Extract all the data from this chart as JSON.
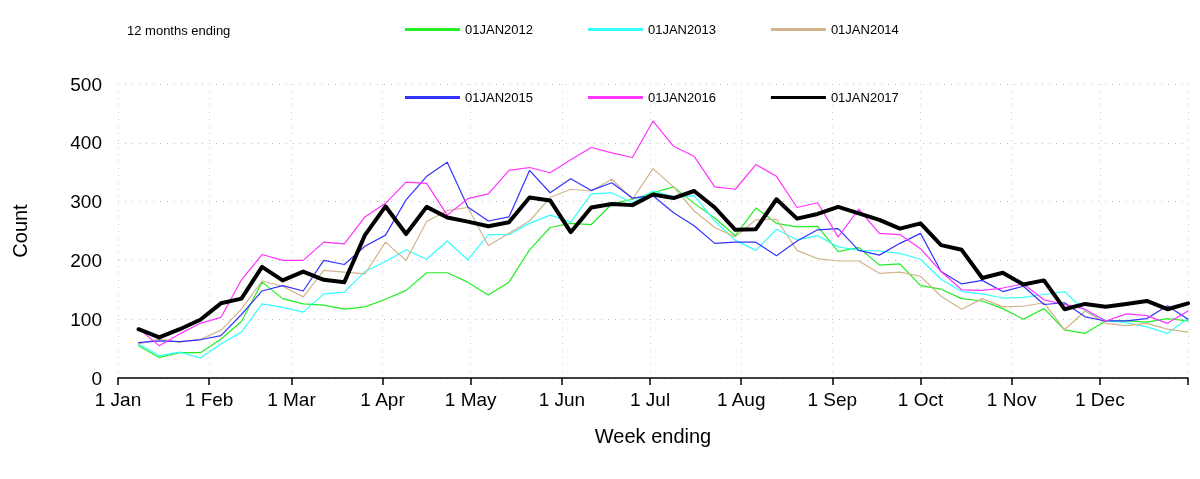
{
  "chart_data": {
    "type": "line",
    "xlabel": "Week ending",
    "ylabel": "Count",
    "legend_title": "12 months ending",
    "legend": "top",
    "grid": true,
    "marker": "none",
    "line_style": "solid",
    "xlim": [
      "--01-01",
      "--12-31"
    ],
    "xticks": [
      {
        "value": "--01-01",
        "label": "1 Jan"
      },
      {
        "value": "--02-01",
        "label": "1 Feb"
      },
      {
        "value": "--03-01",
        "label": "1 Mar"
      },
      {
        "value": "--04-01",
        "label": "1 Apr"
      },
      {
        "value": "--05-01",
        "label": "1 May"
      },
      {
        "value": "--06-01",
        "label": "1 Jun"
      },
      {
        "value": "--07-01",
        "label": "1 Jul"
      },
      {
        "value": "--08-01",
        "label": "1 Aug"
      },
      {
        "value": "--09-01",
        "label": "1 Sep"
      },
      {
        "value": "--10-01",
        "label": "1 Oct"
      },
      {
        "value": "--11-01",
        "label": "1 Nov"
      },
      {
        "value": "--12-01",
        "label": "1 Dec"
      },
      {
        "value": "--12-31",
        "label": null
      }
    ],
    "ylim": [
      0,
      500
    ],
    "yticks": [
      0,
      100,
      200,
      300,
      400,
      500
    ],
    "x": [
      "--01-08",
      "--01-15",
      "--01-22",
      "--01-29",
      "--02-05",
      "--02-12",
      "--02-19",
      "--02-26",
      "--03-05",
      "--03-12",
      "--03-19",
      "--03-26",
      "--04-02",
      "--04-09",
      "--04-16",
      "--04-23",
      "--04-30",
      "--05-07",
      "--05-14",
      "--05-21",
      "--05-28",
      "--06-04",
      "--06-11",
      "--06-18",
      "--06-25",
      "--07-02",
      "--07-09",
      "--07-16",
      "--07-23",
      "--07-30",
      "--08-06",
      "--08-13",
      "--08-20",
      "--08-27",
      "--09-03",
      "--09-10",
      "--09-17",
      "--09-24",
      "--10-01",
      "--10-08",
      "--10-15",
      "--10-22",
      "--10-29",
      "--11-05",
      "--11-12",
      "--11-19",
      "--11-26",
      "--12-03",
      "--12-10",
      "--12-17",
      "--12-24",
      "--12-31"
    ],
    "series": [
      {
        "name": "01JAN2012",
        "color": "#22ee22",
        "values": [
          55,
          35,
          43,
          43,
          66,
          96,
          163,
          135,
          126,
          124,
          117,
          121,
          134,
          149,
          179,
          179,
          163,
          141,
          163,
          218,
          256,
          263,
          261,
          296,
          304,
          315,
          325,
          297,
          272,
          242,
          289,
          263,
          257,
          258,
          215,
          222,
          192,
          194,
          157,
          151,
          135,
          131,
          118,
          100,
          118,
          82,
          76,
          97,
          97,
          95,
          101,
          97
        ]
      },
      {
        "name": "01JAN2013",
        "color": "#33ffff",
        "values": [
          58,
          38,
          44,
          34,
          58,
          78,
          126,
          120,
          112,
          143,
          146,
          181,
          198,
          218,
          202,
          233,
          201,
          244,
          244,
          263,
          277,
          265,
          313,
          315,
          298,
          318,
          308,
          310,
          267,
          234,
          217,
          253,
          235,
          242,
          223,
          217,
          216,
          212,
          202,
          168,
          147,
          143,
          136,
          137,
          142,
          147,
          114,
          98,
          94,
          87,
          76,
          101
        ]
      },
      {
        "name": "01JAN2014",
        "color": "#d2b48c",
        "values": [
          58,
          66,
          61,
          66,
          81,
          117,
          165,
          156,
          138,
          183,
          180,
          177,
          231,
          200,
          266,
          285,
          290,
          225,
          246,
          267,
          307,
          321,
          318,
          338,
          304,
          356,
          325,
          284,
          256,
          240,
          269,
          270,
          217,
          203,
          199,
          199,
          178,
          180,
          173,
          139,
          117,
          135,
          121,
          122,
          128,
          82,
          114,
          93,
          89,
          93,
          83,
          78
        ]
      },
      {
        "name": "01JAN2015",
        "color": "#3333ff",
        "values": [
          60,
          63,
          62,
          65,
          72,
          108,
          148,
          157,
          148,
          200,
          193,
          224,
          243,
          303,
          343,
          367,
          291,
          267,
          274,
          353,
          315,
          339,
          319,
          332,
          306,
          310,
          281,
          259,
          229,
          231,
          231,
          208,
          233,
          252,
          254,
          217,
          209,
          229,
          246,
          181,
          160,
          166,
          147,
          156,
          125,
          128,
          104,
          97,
          97,
          101,
          123,
          100
        ]
      },
      {
        "name": "01JAN2016",
        "color": "#ff33ff",
        "values": [
          84,
          55,
          75,
          93,
          103,
          167,
          210,
          200,
          200,
          231,
          228,
          274,
          297,
          333,
          331,
          277,
          305,
          313,
          353,
          358,
          349,
          371,
          392,
          383,
          375,
          437,
          394,
          377,
          325,
          321,
          363,
          343,
          290,
          298,
          240,
          287,
          246,
          244,
          220,
          181,
          150,
          149,
          153,
          160,
          133,
          125,
          117,
          97,
          109,
          106,
          93,
          114
        ]
      },
      {
        "name": "01JAN2017",
        "color": "#000000",
        "values": [
          83,
          69,
          83,
          99,
          127,
          135,
          189,
          166,
          181,
          167,
          163,
          243,
          292,
          245,
          291,
          273,
          266,
          258,
          265,
          307,
          302,
          248,
          290,
          296,
          294,
          312,
          306,
          318,
          290,
          252,
          253,
          304,
          271,
          279,
          291,
          280,
          269,
          254,
          263,
          226,
          218,
          170,
          179,
          159,
          166,
          117,
          126,
          121,
          126,
          131,
          117,
          127
        ]
      }
    ]
  }
}
